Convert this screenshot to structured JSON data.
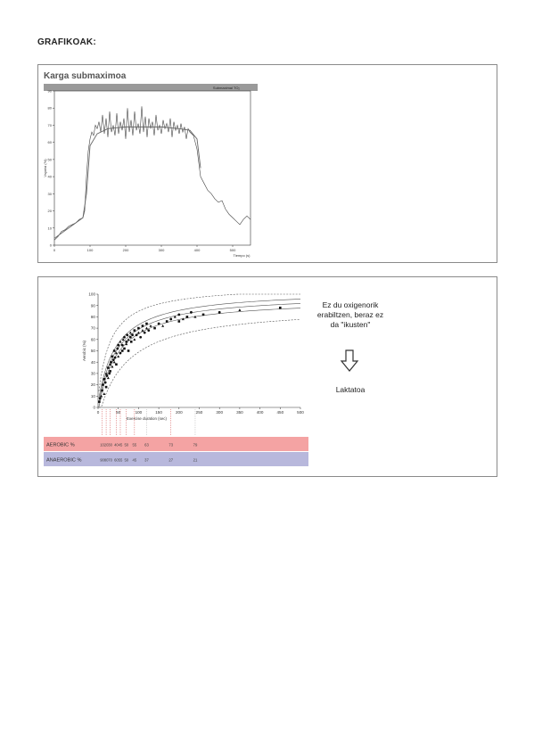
{
  "page": {
    "heading": "GRAFIKOAK:"
  },
  "figure1": {
    "title": "Karga submaximoa",
    "inner_label": "Submaximal TO₂",
    "chart_data": {
      "type": "line",
      "xlabel": "Tiempo (s)",
      "ylabel": "Vsyntsi (%)",
      "xlim": [
        0,
        550
      ],
      "ylim": [
        0,
        90
      ],
      "xticks": [
        0,
        100,
        200,
        300,
        400,
        500
      ],
      "yticks": [
        0,
        10,
        20,
        30,
        40,
        50,
        60,
        70,
        80,
        90
      ],
      "grid": false,
      "series": [
        {
          "x": [
            0,
            10,
            20,
            30,
            40,
            50,
            60,
            70,
            80,
            85,
            90,
            95,
            100,
            105,
            110,
            115,
            120,
            125,
            130,
            135,
            140,
            145,
            150,
            155,
            160,
            165,
            170,
            175,
            180,
            185,
            190,
            195,
            200,
            205,
            210,
            215,
            220,
            225,
            230,
            235,
            240,
            245,
            250,
            255,
            260,
            265,
            270,
            275,
            280,
            285,
            290,
            295,
            300,
            305,
            310,
            315,
            320,
            325,
            330,
            335,
            340,
            345,
            350,
            355,
            360,
            365,
            370,
            375,
            380,
            390,
            400,
            410,
            420,
            430,
            440,
            450,
            460,
            470,
            480,
            490,
            500,
            510,
            520,
            530,
            540,
            550
          ],
          "y": [
            3,
            5,
            8,
            9,
            11,
            12,
            13,
            15,
            16,
            20,
            40,
            55,
            62,
            66,
            64,
            70,
            68,
            72,
            66,
            76,
            65,
            74,
            63,
            78,
            66,
            70,
            64,
            77,
            65,
            72,
            67,
            74,
            62,
            80,
            66,
            73,
            64,
            78,
            67,
            71,
            65,
            81,
            66,
            75,
            63,
            74,
            68,
            72,
            64,
            76,
            67,
            70,
            65,
            73,
            68,
            71,
            66,
            74,
            63,
            72,
            67,
            70,
            65,
            71,
            66,
            69,
            62,
            68,
            66,
            64,
            56,
            40,
            36,
            32,
            30,
            27,
            25,
            26,
            21,
            18,
            16,
            14,
            12,
            15,
            17,
            15
          ]
        },
        {
          "x": [
            0,
            40,
            80,
            90,
            100,
            120,
            150,
            200,
            250,
            300,
            350,
            380,
            400,
            410
          ],
          "y": [
            4,
            10,
            16,
            30,
            58,
            65,
            68,
            69,
            69,
            69,
            68,
            67,
            62,
            45
          ]
        }
      ]
    }
  },
  "figure2": {
    "chart_data": {
      "type": "scatter",
      "xlabel": "Exercise duration (sec)",
      "ylabel": "Aerobic (%)",
      "xlim": [
        0,
        500
      ],
      "ylim": [
        0,
        100
      ],
      "xticks": [
        0,
        50,
        100,
        150,
        200,
        250,
        300,
        350,
        400,
        450,
        500
      ],
      "yticks": [
        0,
        10,
        20,
        30,
        40,
        50,
        60,
        70,
        80,
        90,
        100
      ],
      "grid": false,
      "series": [
        {
          "x": [
            3,
            5,
            8,
            10,
            12,
            15,
            15,
            18,
            20,
            20,
            22,
            25,
            25,
            28,
            30,
            30,
            32,
            35,
            35,
            38,
            40,
            40,
            42,
            45,
            45,
            48,
            50,
            50,
            55,
            55,
            60,
            60,
            62,
            65,
            65,
            70,
            70,
            72,
            75,
            75,
            80,
            80,
            82,
            85,
            90,
            90,
            95,
            100,
            100,
            105,
            110,
            110,
            115,
            120,
            120,
            125,
            130,
            140,
            150,
            160,
            170,
            180,
            190,
            200,
            200,
            210,
            220,
            230,
            240,
            260,
            300,
            350,
            450
          ],
          "y": [
            5,
            8,
            10,
            15,
            20,
            12,
            25,
            22,
            30,
            18,
            28,
            26,
            35,
            30,
            38,
            32,
            40,
            36,
            45,
            42,
            40,
            50,
            44,
            48,
            38,
            52,
            45,
            55,
            48,
            58,
            50,
            55,
            60,
            52,
            62,
            56,
            58,
            64,
            60,
            50,
            62,
            66,
            58,
            64,
            60,
            68,
            64,
            66,
            70,
            62,
            68,
            72,
            66,
            70,
            74,
            68,
            72,
            70,
            74,
            72,
            76,
            78,
            80,
            76,
            82,
            78,
            80,
            84,
            80,
            82,
            84,
            86,
            88
          ]
        }
      ],
      "table": {
        "rows": [
          {
            "label": "AEROBIC %",
            "values": [
              "10",
              "20",
              "30",
              "40",
              "45",
              "50",
              "55",
              "63",
              "73",
              "79"
            ]
          },
          {
            "label": "ANAEROBIC %",
            "values": [
              "90",
              "80",
              "70",
              "60",
              "55",
              "50",
              "45",
              "37",
              "27",
              "21"
            ]
          }
        ]
      }
    },
    "note": {
      "line1": "Ez du oxigenorik",
      "line2": "erabiltzen, beraz ez",
      "line3": "da \"ikusten\"",
      "result": "Laktatoa"
    }
  }
}
